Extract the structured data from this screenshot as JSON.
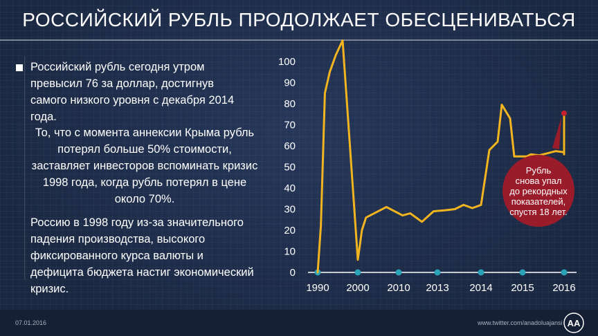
{
  "title": "РОССИЙСКИЙ РУБЛЬ ПРОДОЛЖАЕТ ОБЕСЦЕНИВАТЬСЯ",
  "paragraphs": {
    "p1": "Российский рубль сегодня утром превысил 76 за доллар, достигнув самого низкого уровня с декабря 2014 года.",
    "p2": "То, что с момента аннексии Крыма рубль потерял больше 50% стоимости, заставляет инвесторов вспоминать кризис 1998 года, когда рубль потерял в цене около 70%.",
    "p3": "Россию в 1998 году из-за значительного падения производства, высокого фиксированного курса валюты и дефицита бюджета настиг экономический кризис."
  },
  "footer": {
    "date": "07.01.2016",
    "url": "www.twitter.com/anadoluajansi",
    "logo_text": "AA"
  },
  "colors": {
    "line": "#f2b51f",
    "marker": "#2aa3b8",
    "callout": "#9a1c2b",
    "callout_dot": "#c4202f"
  },
  "chart_data": {
    "type": "line",
    "ylim": [
      0,
      100
    ],
    "yticks": [
      "0",
      "10",
      "20",
      "30",
      "40",
      "50",
      "60",
      "70",
      "80",
      "90",
      "100"
    ],
    "xticks": [
      "1990",
      "2000",
      "2010",
      "2013",
      "2014",
      "2015",
      "2016"
    ],
    "grid": false,
    "annotation": "Рубль снова упал до рекордных показателей, спустя 18 лет.",
    "annotation_lines": [
      "Рубль",
      "снова упал",
      "до рекордных",
      "показателей,",
      "спустя 18 лет."
    ],
    "series": [
      {
        "values": [
          [
            0.0,
            0
          ],
          [
            0.08,
            22
          ],
          [
            0.18,
            85
          ],
          [
            0.3,
            95
          ],
          [
            0.45,
            103
          ],
          [
            0.62,
            110
          ],
          [
            1.0,
            6
          ],
          [
            1.1,
            20
          ],
          [
            1.2,
            26
          ],
          [
            1.4,
            28
          ],
          [
            1.7,
            31
          ],
          [
            1.8,
            30
          ],
          [
            2.1,
            27
          ],
          [
            2.3,
            28
          ],
          [
            2.6,
            24
          ],
          [
            2.9,
            29
          ],
          [
            3.2,
            29.5
          ],
          [
            3.4,
            30
          ],
          [
            3.6,
            32
          ],
          [
            3.8,
            30.5
          ],
          [
            4.0,
            32
          ],
          [
            4.2,
            58
          ],
          [
            4.4,
            62
          ],
          [
            4.5,
            79.5
          ],
          [
            4.7,
            73
          ],
          [
            4.8,
            55
          ],
          [
            4.9,
            55
          ],
          [
            5.1,
            55
          ],
          [
            5.2,
            56
          ],
          [
            5.4,
            55.5
          ],
          [
            5.6,
            56.5
          ],
          [
            5.8,
            57.5
          ],
          [
            6.0,
            57
          ],
          [
            6.2,
            57
          ],
          [
            6.35,
            57
          ],
          [
            6.5,
            56
          ],
          [
            6.65,
            58
          ],
          [
            6.85,
            58.5
          ],
          [
            7.0,
            59
          ],
          [
            7.15,
            59.5
          ],
          [
            7.35,
            60
          ],
          [
            7.5,
            61
          ],
          [
            7.65,
            63
          ],
          [
            7.8,
            64
          ],
          [
            8.0,
            66
          ],
          [
            8.15,
            68
          ],
          [
            8.3,
            68
          ],
          [
            8.45,
            70
          ],
          [
            8.55,
            74.5
          ],
          [
            8.7,
            74
          ],
          [
            8.85,
            73.5
          ],
          [
            9.0,
            75
          ],
          [
            9.1,
            74
          ],
          [
            9.2,
            75
          ],
          [
            9.3,
            75.5
          ]
        ]
      }
    ]
  }
}
